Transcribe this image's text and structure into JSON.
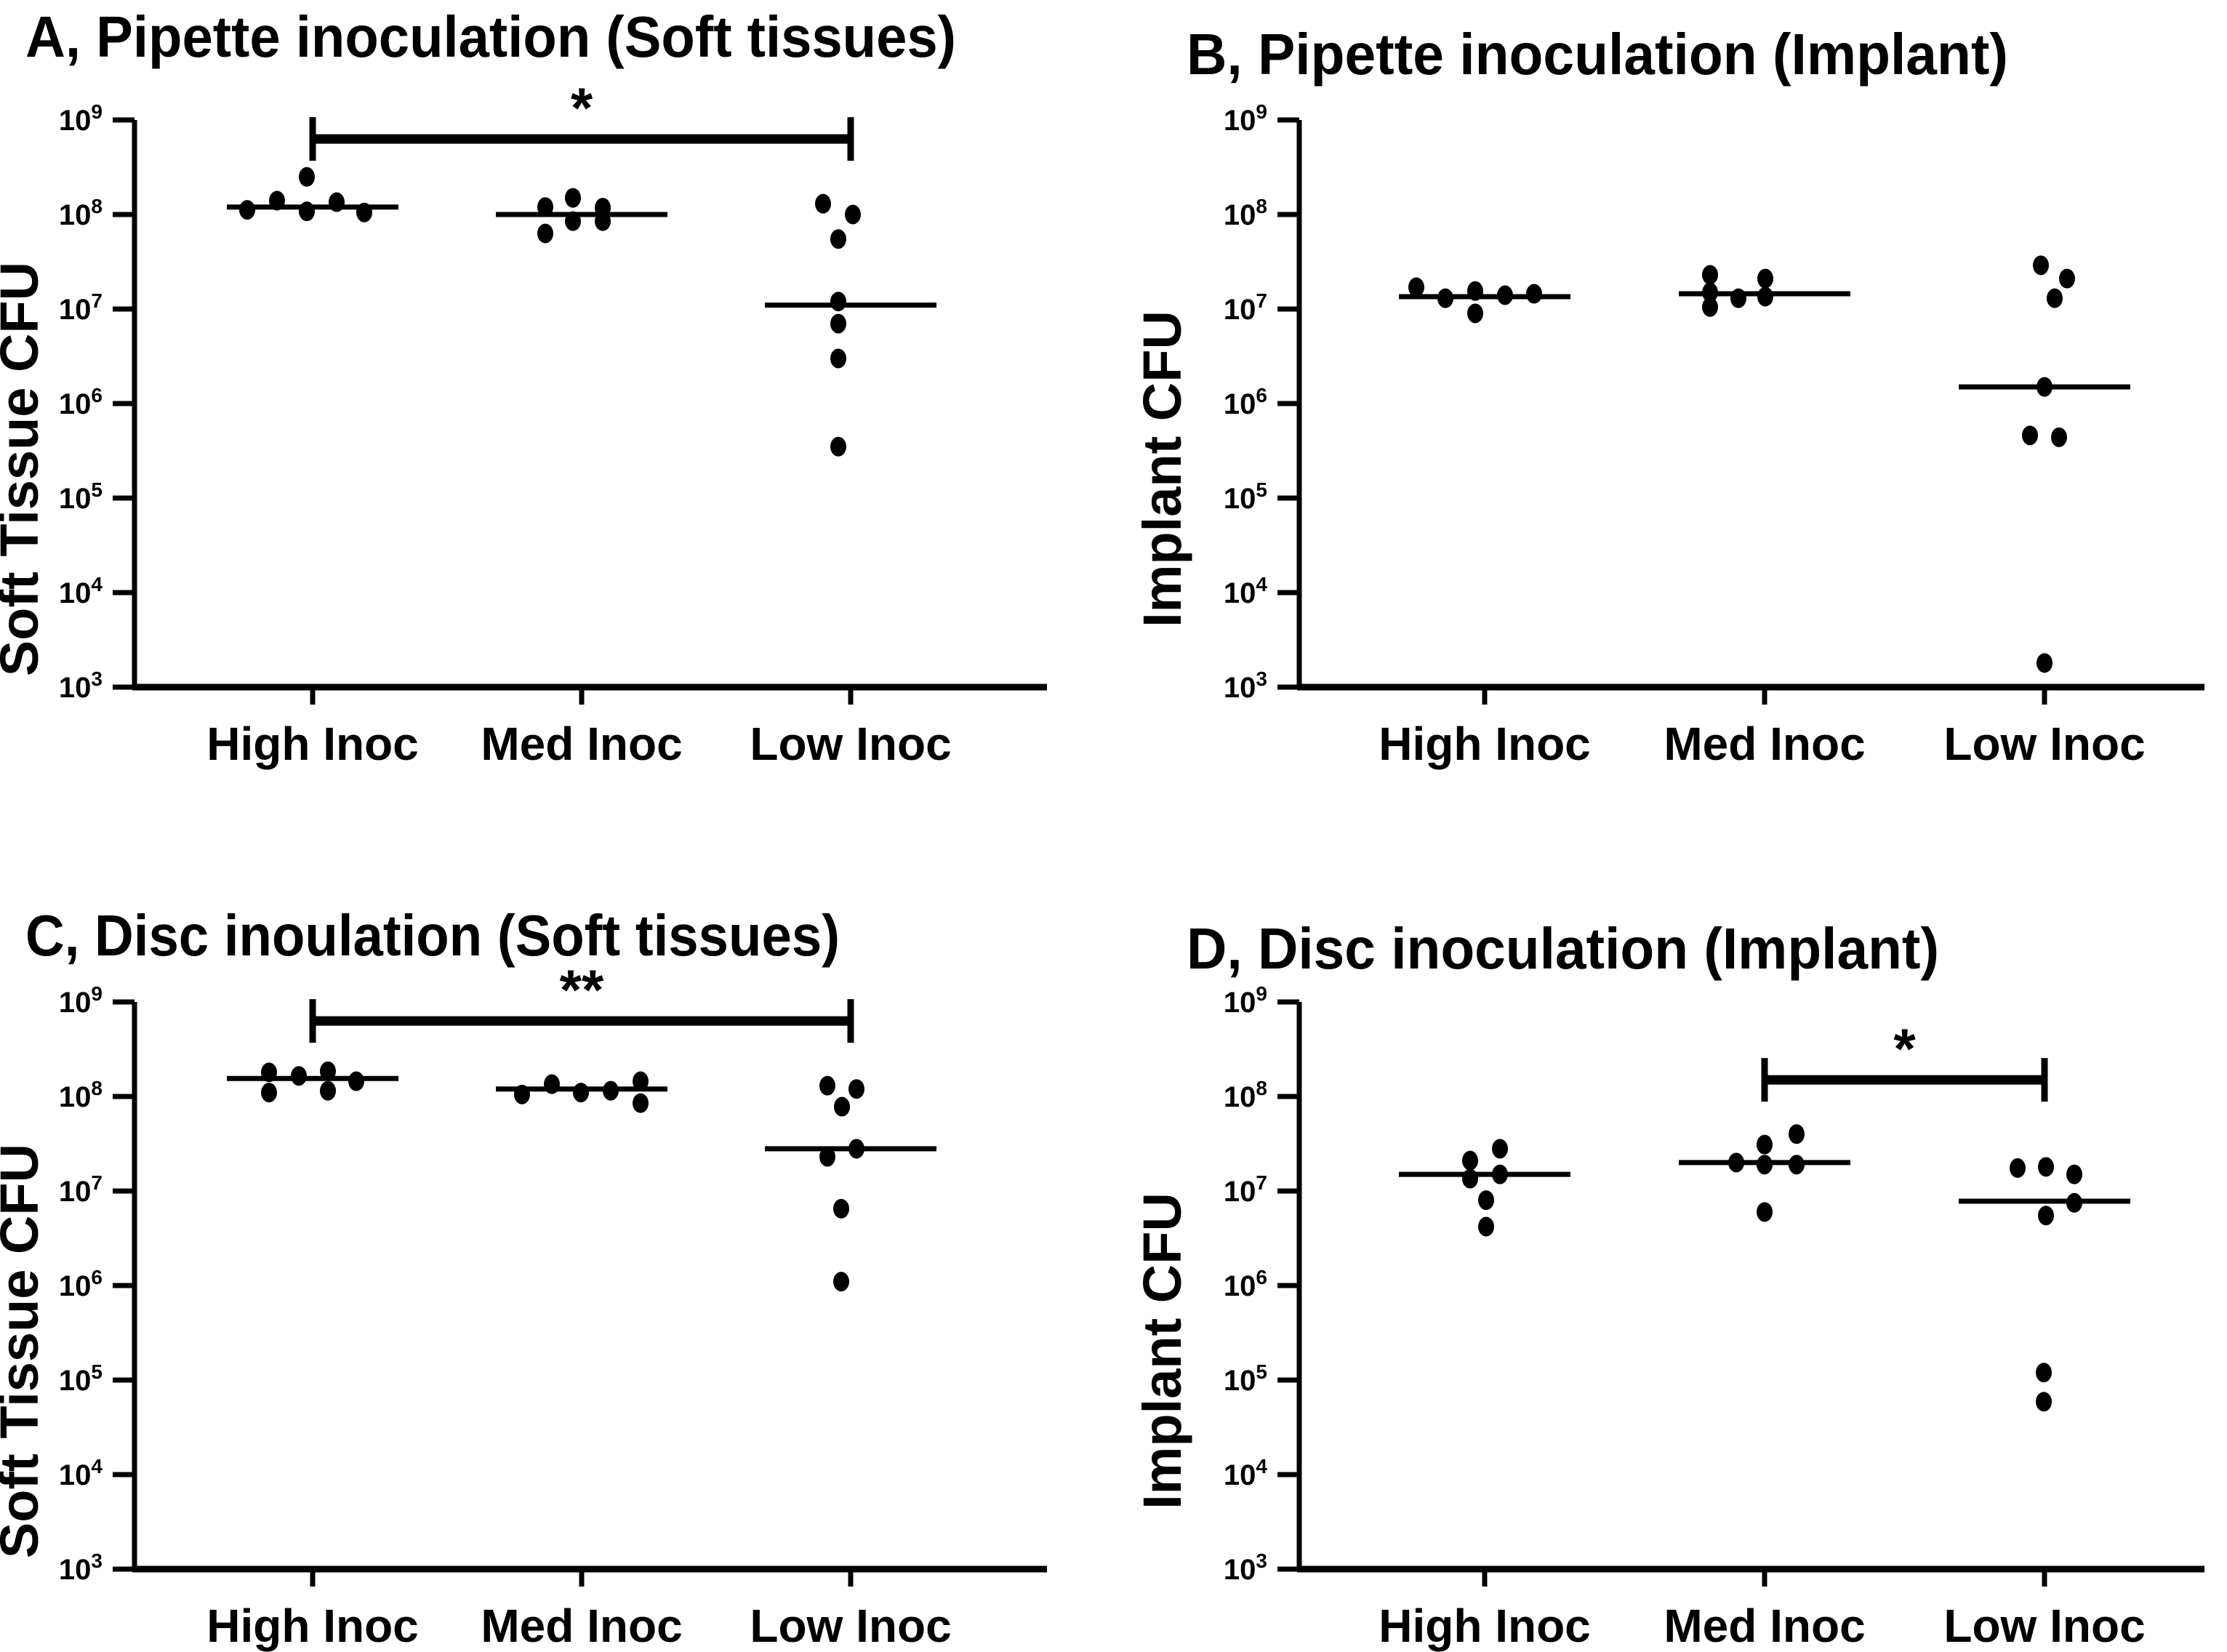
{
  "figure": {
    "background": "#ffffff",
    "ink_color": "#000000"
  },
  "chart_data": [
    {
      "type": "scatter",
      "panel": "A",
      "title": "A, Pipette inoculation (Soft tissues)",
      "ylabel": "Soft Tissue CFU",
      "xlabel": "",
      "y_scale": "log",
      "ylim": [
        1000,
        1000000000
      ],
      "y_tick_exponents": [
        9,
        8,
        7,
        6,
        5,
        4,
        3
      ],
      "categories": [
        "High Inoc",
        "Med Inoc",
        "Low Inoc"
      ],
      "series": [
        {
          "name": "High Inoc",
          "median": 120000000.0,
          "points": [
            {
              "v": 250000000.0,
              "dx": -8
            },
            {
              "v": 140000000.0,
              "dx": -49
            },
            {
              "v": 112000000.0,
              "dx": -90
            },
            {
              "v": 108000000.0,
              "dx": -8
            },
            {
              "v": 135000000.0,
              "dx": 33
            },
            {
              "v": 105000000.0,
              "dx": 71
            }
          ]
        },
        {
          "name": "Med Inoc",
          "median": 100000000.0,
          "points": [
            {
              "v": 120000000.0,
              "dx": -50
            },
            {
              "v": 150000000.0,
              "dx": -12
            },
            {
              "v": 118000000.0,
              "dx": 29
            },
            {
              "v": 63000000.0,
              "dx": -50
            },
            {
              "v": 85000000.0,
              "dx": -12
            },
            {
              "v": 85000000.0,
              "dx": 29
            }
          ]
        },
        {
          "name": "Low Inoc",
          "median": 11000000.0,
          "points": [
            {
              "v": 130000000.0,
              "dx": -38
            },
            {
              "v": 100000000.0,
              "dx": 3
            },
            {
              "v": 55000000.0,
              "dx": -17
            },
            {
              "v": 12000000.0,
              "dx": -17
            },
            {
              "v": 7000000.0,
              "dx": -17
            },
            {
              "v": 3000000.0,
              "dx": -17
            },
            {
              "v": 350000.0,
              "dx": -17
            }
          ]
        }
      ],
      "significance": {
        "from": 0,
        "to": 2,
        "label": "*",
        "bar_value": 630000000.0
      }
    },
    {
      "type": "scatter",
      "panel": "B",
      "title": "B, Pipette inoculation (Implant)",
      "ylabel": "Implant CFU",
      "xlabel": "",
      "y_scale": "log",
      "ylim": [
        1000,
        1000000000
      ],
      "y_tick_exponents": [
        9,
        8,
        7,
        6,
        5,
        4,
        3
      ],
      "categories": [
        "High Inoc",
        "Med Inoc",
        "Low Inoc"
      ],
      "series": [
        {
          "name": "High Inoc",
          "median": 13500000.0,
          "points": [
            {
              "v": 17000000.0,
              "dx": -94
            },
            {
              "v": 13000000.0,
              "dx": -54
            },
            {
              "v": 15500000.0,
              "dx": -13
            },
            {
              "v": 9000000.0,
              "dx": -13
            },
            {
              "v": 14000000.0,
              "dx": 28
            },
            {
              "v": 14500000.0,
              "dx": 68
            }
          ]
        },
        {
          "name": "Med Inoc",
          "median": 14500000.0,
          "points": [
            {
              "v": 23000000.0,
              "dx": -75
            },
            {
              "v": 15000000.0,
              "dx": -75
            },
            {
              "v": 10500000.0,
              "dx": -75
            },
            {
              "v": 13000000.0,
              "dx": -36
            },
            {
              "v": 21000000.0,
              "dx": 1
            },
            {
              "v": 13500000.0,
              "dx": 1
            }
          ]
        },
        {
          "name": "Low Inoc",
          "median": 1500000.0,
          "points": [
            {
              "v": 29000000.0,
              "dx": -5
            },
            {
              "v": 21000000.0,
              "dx": 31
            },
            {
              "v": 13000000.0,
              "dx": 14
            },
            {
              "v": 1500000.0,
              "dx": 0
            },
            {
              "v": 460000.0,
              "dx": -20
            },
            {
              "v": 440000.0,
              "dx": 20
            },
            {
              "v": 1800.0,
              "dx": 0
            }
          ]
        }
      ],
      "significance": null
    },
    {
      "type": "scatter",
      "panel": "C",
      "title": "C, Disc inoulation (Soft tissues)",
      "ylabel": "Soft Tissue CFU",
      "xlabel": "",
      "y_scale": "log",
      "ylim": [
        1000,
        1000000000
      ],
      "y_tick_exponents": [
        9,
        8,
        7,
        6,
        5,
        4,
        3
      ],
      "categories": [
        "High Inoc",
        "Med Inoc",
        "Low Inoc"
      ],
      "series": [
        {
          "name": "High Inoc",
          "median": 155000000.0,
          "points": [
            {
              "v": 180000000.0,
              "dx": -60
            },
            {
              "v": 110000000.0,
              "dx": -60
            },
            {
              "v": 165000000.0,
              "dx": -19
            },
            {
              "v": 185000000.0,
              "dx": 21
            },
            {
              "v": 115000000.0,
              "dx": 21
            },
            {
              "v": 145000000.0,
              "dx": 60
            }
          ]
        },
        {
          "name": "Med Inoc",
          "median": 120000000.0,
          "points": [
            {
              "v": 105000000.0,
              "dx": -82
            },
            {
              "v": 135000000.0,
              "dx": -41
            },
            {
              "v": 110000000.0,
              "dx": -1
            },
            {
              "v": 115000000.0,
              "dx": 40
            },
            {
              "v": 145000000.0,
              "dx": 81
            },
            {
              "v": 85000000.0,
              "dx": 81
            }
          ]
        },
        {
          "name": "Low Inoc",
          "median": 28000000.0,
          "points": [
            {
              "v": 130000000.0,
              "dx": -32
            },
            {
              "v": 120000000.0,
              "dx": 8
            },
            {
              "v": 78000000.0,
              "dx": -12
            },
            {
              "v": 28000000.0,
              "dx": 8
            },
            {
              "v": 23000000.0,
              "dx": -32
            },
            {
              "v": 6500000.0,
              "dx": -13
            },
            {
              "v": 1100000.0,
              "dx": -13
            }
          ]
        }
      ],
      "significance": {
        "from": 0,
        "to": 2,
        "label": "**",
        "bar_value": 630000000.0
      }
    },
    {
      "type": "scatter",
      "panel": "D",
      "title": "D, Disc inoculation (Implant)",
      "ylabel": "Implant CFU",
      "xlabel": "",
      "y_scale": "log",
      "ylim": [
        1000,
        1000000000
      ],
      "y_tick_exponents": [
        9,
        8,
        7,
        6,
        5,
        4,
        3
      ],
      "categories": [
        "High Inoc",
        "Med Inoc",
        "Low Inoc"
      ],
      "series": [
        {
          "name": "High Inoc",
          "median": 15000000.0,
          "points": [
            {
              "v": 28000000.0,
              "dx": 21
            },
            {
              "v": 21000000.0,
              "dx": -20
            },
            {
              "v": 15000000.0,
              "dx": 21
            },
            {
              "v": 13500000.0,
              "dx": -20
            },
            {
              "v": 8000000.0,
              "dx": 2
            },
            {
              "v": 4200000.0,
              "dx": 2
            }
          ]
        },
        {
          "name": "Med Inoc",
          "median": 20000000.0,
          "points": [
            {
              "v": 40000000.0,
              "dx": 44
            },
            {
              "v": 31000000.0,
              "dx": 0
            },
            {
              "v": 20000000.0,
              "dx": -39
            },
            {
              "v": 19000000.0,
              "dx": 0
            },
            {
              "v": 19000000.0,
              "dx": 44
            },
            {
              "v": 6000000.0,
              "dx": 0
            }
          ]
        },
        {
          "name": "Low Inoc",
          "median": 7800000.0,
          "points": [
            {
              "v": 17500000.0,
              "dx": -37
            },
            {
              "v": 18000000.0,
              "dx": 2
            },
            {
              "v": 15000000.0,
              "dx": 41
            },
            {
              "v": 7500000.0,
              "dx": 41
            },
            {
              "v": 5500000.0,
              "dx": 2
            },
            {
              "v": 120000.0,
              "dx": -1
            },
            {
              "v": 59000.0,
              "dx": -1
            }
          ]
        }
      ],
      "significance": {
        "from": 1,
        "to": 2,
        "label": "*",
        "bar_value": 150000000.0
      }
    }
  ]
}
